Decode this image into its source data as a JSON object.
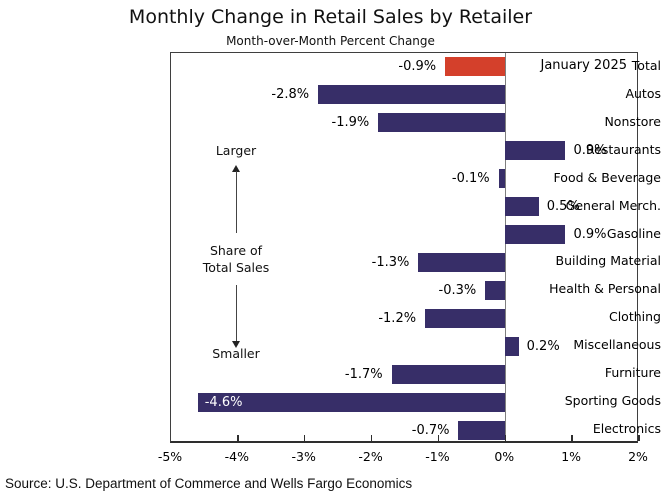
{
  "title": "Monthly Change in Retail Sales by Retailer",
  "subtitle": "Month-over-Month Percent Change",
  "date_note": "January 2025",
  "source": "Source: U.S. Department of Commerce and Wells Fargo Economics",
  "annotations": {
    "larger": "Larger",
    "share_line1": "Share of",
    "share_line2": "Total Sales",
    "smaller": "Smaller"
  },
  "colors": {
    "bar_default": "#372E68",
    "bar_highlight": "#D4402B",
    "zero_line": "#7F7F7F",
    "axis": "#2E2E2E"
  },
  "chart_data": {
    "type": "bar",
    "orientation": "horizontal",
    "categories": [
      "Total",
      "Autos",
      "Nonstore",
      "Restaurants",
      "Food & Beverage",
      "General Merch.",
      "Gasoline",
      "Building Material",
      "Health & Personal",
      "Clothing",
      "Miscellaneous",
      "Furniture",
      "Sporting Goods",
      "Electronics"
    ],
    "values": [
      -0.9,
      -2.8,
      -1.9,
      0.9,
      -0.1,
      0.5,
      0.9,
      -1.3,
      -0.3,
      -1.2,
      0.2,
      -1.7,
      -4.6,
      -0.7
    ],
    "value_labels": [
      "-0.9%",
      "-2.8%",
      "-1.9%",
      "0.9%",
      "-0.1%",
      "0.5%",
      "0.9%",
      "-1.3%",
      "-0.3%",
      "-1.2%",
      "0.2%",
      "-1.7%",
      "-4.6%",
      "-0.7%"
    ],
    "highlight_index": 0,
    "inside_label_index": 12,
    "xlim": [
      -5,
      2
    ],
    "x_tick_labels": [
      "-5%",
      "-4%",
      "-3%",
      "-2%",
      "-1%",
      "0%",
      "1%",
      "2%"
    ],
    "grid": false,
    "legend": false
  }
}
